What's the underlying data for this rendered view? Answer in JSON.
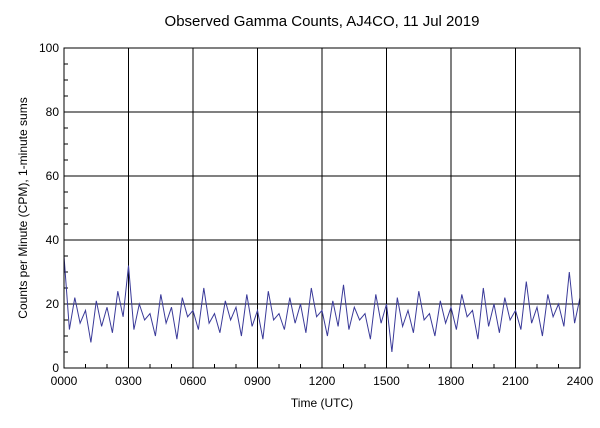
{
  "chart_data": {
    "type": "line",
    "title": "Observed Gamma Counts, AJ4CO, 11 Jul 2019",
    "xlabel": "Time (UTC)",
    "ylabel": "Counts per Minute (CPM), 1-minute sums",
    "xlim": [
      0,
      1440
    ],
    "ylim": [
      0,
      100
    ],
    "x_ticks": [
      {
        "minute": 0,
        "label": "0000"
      },
      {
        "minute": 180,
        "label": "0300"
      },
      {
        "minute": 360,
        "label": "0600"
      },
      {
        "minute": 540,
        "label": "0900"
      },
      {
        "minute": 720,
        "label": "1200"
      },
      {
        "minute": 900,
        "label": "1500"
      },
      {
        "minute": 1080,
        "label": "1800"
      },
      {
        "minute": 1260,
        "label": "2100"
      },
      {
        "minute": 1440,
        "label": "2400"
      }
    ],
    "y_ticks": [
      0,
      20,
      40,
      60,
      80,
      100
    ],
    "grid": true,
    "line_color": "#3a3a99",
    "series": [
      {
        "name": "",
        "x": [
          0,
          15,
          30,
          45,
          60,
          75,
          90,
          105,
          120,
          135,
          150,
          165,
          180,
          195,
          210,
          225,
          240,
          255,
          270,
          285,
          300,
          315,
          330,
          345,
          360,
          375,
          390,
          405,
          420,
          435,
          450,
          465,
          480,
          495,
          510,
          525,
          540,
          555,
          570,
          585,
          600,
          615,
          630,
          645,
          660,
          675,
          690,
          705,
          720,
          735,
          750,
          765,
          780,
          795,
          810,
          825,
          840,
          855,
          870,
          885,
          900,
          915,
          930,
          945,
          960,
          975,
          990,
          1005,
          1020,
          1035,
          1050,
          1065,
          1080,
          1095,
          1110,
          1125,
          1140,
          1155,
          1170,
          1185,
          1200,
          1215,
          1230,
          1245,
          1260,
          1275,
          1290,
          1305,
          1320,
          1335,
          1350,
          1365,
          1380,
          1395,
          1410,
          1425,
          1440
        ],
        "values": [
          35,
          12,
          22,
          14,
          18,
          8,
          21,
          13,
          19,
          11,
          24,
          16,
          32,
          12,
          20,
          15,
          17,
          10,
          23,
          14,
          19,
          9,
          22,
          16,
          18,
          12,
          25,
          14,
          17,
          11,
          21,
          15,
          19,
          10,
          23,
          13,
          18,
          9,
          24,
          15,
          17,
          12,
          22,
          14,
          20,
          11,
          25,
          16,
          18,
          10,
          21,
          13,
          26,
          12,
          19,
          15,
          17,
          9,
          23,
          14,
          20,
          5,
          22,
          13,
          18,
          11,
          24,
          15,
          17,
          10,
          21,
          14,
          19,
          12,
          23,
          16,
          18,
          9,
          25,
          13,
          20,
          11,
          22,
          15,
          18,
          12,
          27,
          14,
          19,
          10,
          23,
          16,
          20,
          13,
          30,
          14,
          22
        ]
      }
    ]
  }
}
